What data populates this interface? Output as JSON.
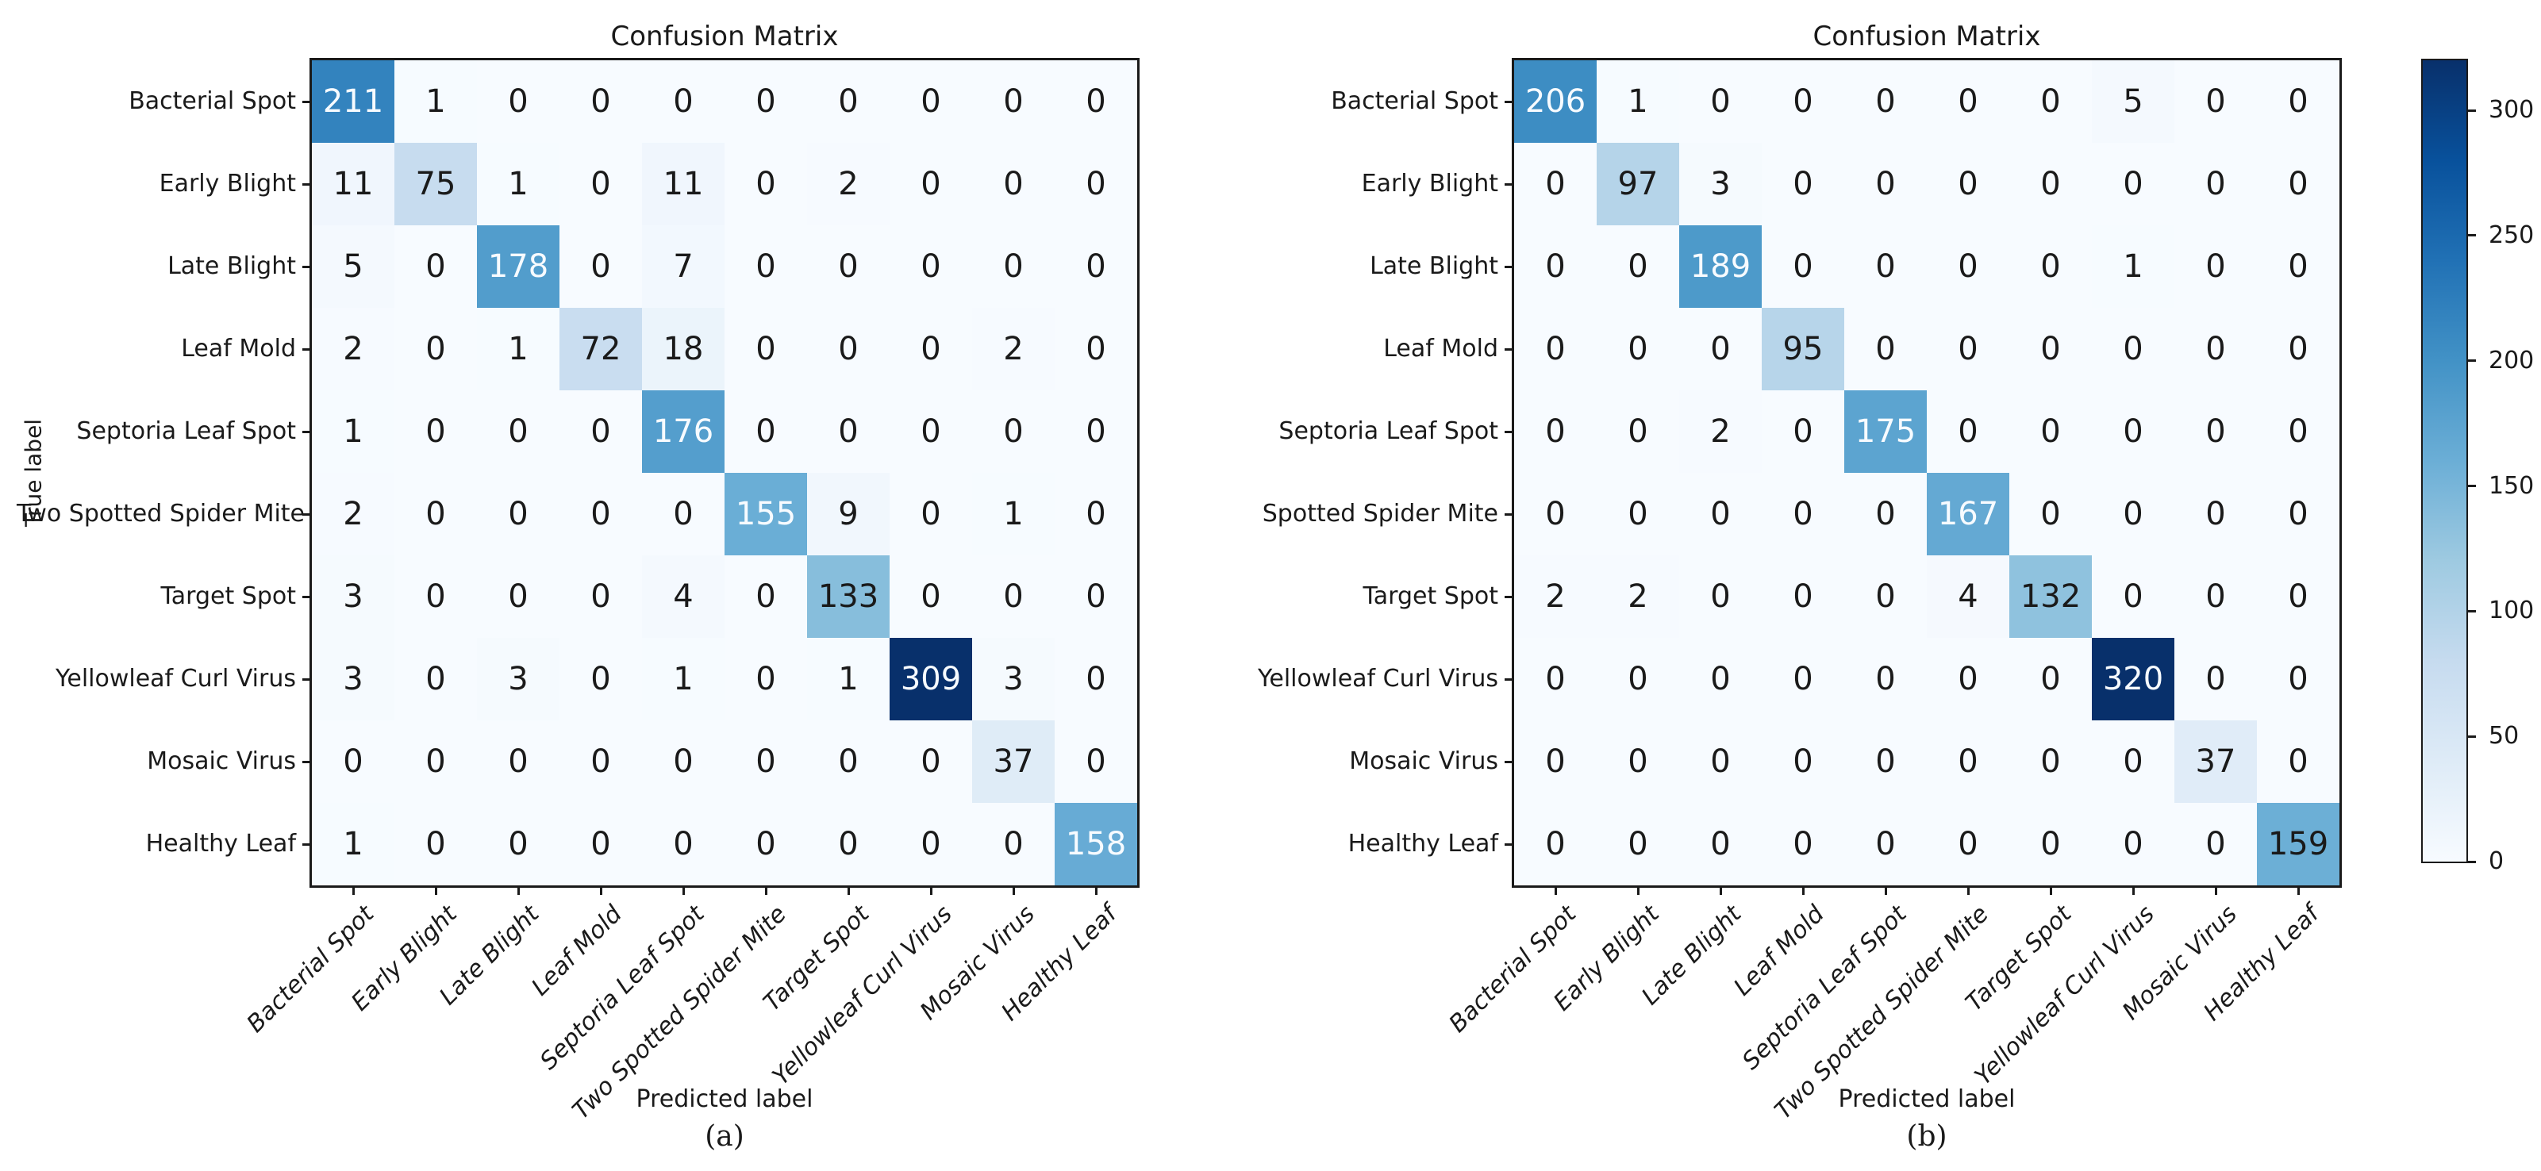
{
  "figure": {
    "background": "#ffffff",
    "colors": {
      "spine": "#1a1a1a",
      "tick": "#1a1a1a",
      "text_dark": "#1a1a1a",
      "text_light": "#f7fbff",
      "colormap_name": "Blues",
      "colormap_anchors": [
        "#f7fbff",
        "#deebf7",
        "#c6dbef",
        "#9ecae1",
        "#6baed6",
        "#4292c6",
        "#2171b5",
        "#08519c",
        "#08306b"
      ]
    }
  },
  "colorbar": {
    "vmin": 0,
    "vmax": 320,
    "ticks": [
      0,
      50,
      100,
      150,
      200,
      250,
      300
    ],
    "position": "right"
  },
  "chart_data": [
    {
      "type": "heatmap",
      "panel": "a",
      "title": "Confusion Matrix",
      "xlabel": "Predicted label",
      "ylabel": "True label",
      "caption": "(a)",
      "colormap": "Blues",
      "vmin": 0,
      "vmax": 309,
      "x_labels": [
        "Bacterial Spot",
        "Early Blight",
        "Late Blight",
        "Leaf Mold",
        "Septoria Leaf Spot",
        "Two Spotted Spider Mite",
        "Target Spot",
        "Yellowleaf Curl Virus",
        "Mosaic Virus",
        "Healthy Leaf"
      ],
      "y_labels": [
        "Bacterial Spot",
        "Early Blight",
        "Late Blight",
        "Leaf Mold",
        "Septoria Leaf Spot",
        "Two Spotted Spider Mite",
        "Target Spot",
        "Yellowleaf Curl Virus",
        "Mosaic Virus",
        "Healthy Leaf"
      ],
      "values": [
        [
          211,
          1,
          0,
          0,
          0,
          0,
          0,
          0,
          0,
          0
        ],
        [
          11,
          75,
          1,
          0,
          11,
          0,
          2,
          0,
          0,
          0
        ],
        [
          5,
          0,
          178,
          0,
          7,
          0,
          0,
          0,
          0,
          0
        ],
        [
          2,
          0,
          1,
          72,
          18,
          0,
          0,
          0,
          2,
          0
        ],
        [
          1,
          0,
          0,
          0,
          176,
          0,
          0,
          0,
          0,
          0
        ],
        [
          2,
          0,
          0,
          0,
          0,
          155,
          9,
          0,
          1,
          0
        ],
        [
          3,
          0,
          0,
          0,
          4,
          0,
          133,
          0,
          0,
          0
        ],
        [
          3,
          0,
          3,
          0,
          1,
          0,
          1,
          309,
          3,
          0
        ],
        [
          0,
          0,
          0,
          0,
          0,
          0,
          0,
          0,
          37,
          0
        ],
        [
          1,
          0,
          0,
          0,
          0,
          0,
          0,
          0,
          0,
          158
        ]
      ]
    },
    {
      "type": "heatmap",
      "panel": "b",
      "title": "Confusion Matrix",
      "xlabel": "Predicted label",
      "ylabel": "",
      "caption": "(b)",
      "colormap": "Blues",
      "vmin": 0,
      "vmax": 320,
      "x_labels": [
        "Bacterial Spot",
        "Early Blight",
        "Late Blight",
        "Leaf Mold",
        "Septoria Leaf Spot",
        "Two Spotted Spider Mite",
        "Target Spot",
        "Yellowleaf Curl Virus",
        "Mosaic Virus",
        "Healthy Leaf"
      ],
      "y_labels": [
        "Bacterial Spot",
        "Early Blight",
        "Late Blight",
        "Leaf Mold",
        "Septoria Leaf Spot",
        "Spotted Spider Mite",
        "Target Spot",
        "Yellowleaf Curl Virus",
        "Mosaic Virus",
        "Healthy Leaf"
      ],
      "values": [
        [
          206,
          1,
          0,
          0,
          0,
          0,
          0,
          5,
          0,
          0
        ],
        [
          0,
          97,
          3,
          0,
          0,
          0,
          0,
          0,
          0,
          0
        ],
        [
          0,
          0,
          189,
          0,
          0,
          0,
          0,
          1,
          0,
          0
        ],
        [
          0,
          0,
          0,
          95,
          0,
          0,
          0,
          0,
          0,
          0
        ],
        [
          0,
          0,
          2,
          0,
          175,
          0,
          0,
          0,
          0,
          0
        ],
        [
          0,
          0,
          0,
          0,
          0,
          167,
          0,
          0,
          0,
          0
        ],
        [
          2,
          2,
          0,
          0,
          0,
          4,
          132,
          0,
          0,
          0
        ],
        [
          0,
          0,
          0,
          0,
          0,
          0,
          0,
          320,
          0,
          0
        ],
        [
          0,
          0,
          0,
          0,
          0,
          0,
          0,
          0,
          37,
          0
        ],
        [
          0,
          0,
          0,
          0,
          0,
          0,
          0,
          0,
          0,
          159
        ]
      ]
    }
  ]
}
